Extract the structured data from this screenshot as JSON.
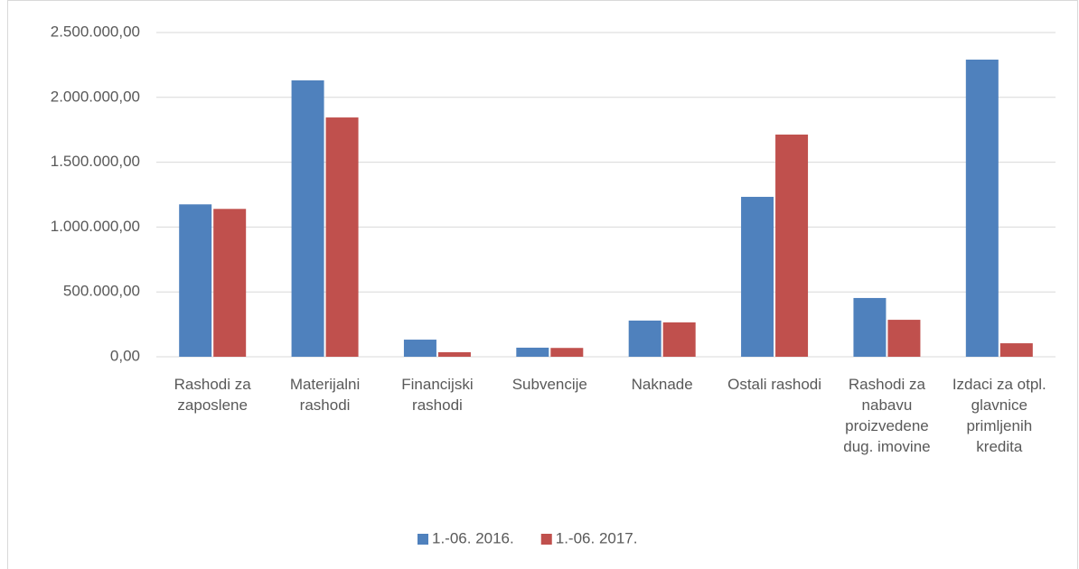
{
  "chart_data": {
    "type": "bar",
    "categories": [
      "Rashodi za zaposlene",
      "Materijalni rashodi",
      "Financijski rashodi",
      "Subvencije",
      "Naknade",
      "Ostali rashodi",
      "Rashodi za nabavu proizvedene dug. imovine",
      "Izdaci za otpl. glavnice primljenih kredita"
    ],
    "series": [
      {
        "name": "1.-06. 2016.",
        "color": "#4f81bd",
        "values": [
          1175000,
          2131000,
          132000,
          70000,
          279000,
          1233000,
          453000,
          2291000
        ]
      },
      {
        "name": "1.-06. 2017.",
        "color": "#c0504d",
        "values": [
          1140000,
          1845000,
          35000,
          68000,
          265000,
          1713000,
          285000,
          104000
        ]
      }
    ],
    "ylim": [
      0,
      2500000
    ],
    "yticks": [
      {
        "value": 0,
        "label": "0,00"
      },
      {
        "value": 500000,
        "label": "500.000,00"
      },
      {
        "value": 1000000,
        "label": "1.000.000,00"
      },
      {
        "value": 1500000,
        "label": "1.500.000,00"
      },
      {
        "value": 2000000,
        "label": "2.000.000,00"
      },
      {
        "value": 2500000,
        "label": "2.500.000,00"
      }
    ],
    "grid": true,
    "legend": "bottom"
  }
}
